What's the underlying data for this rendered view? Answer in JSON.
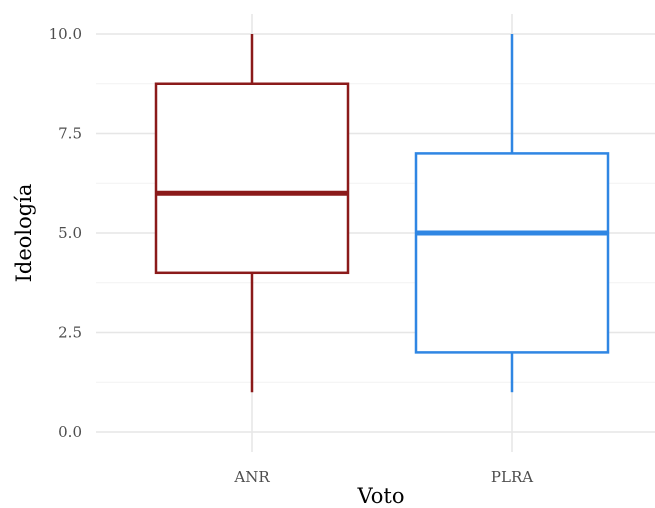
{
  "chart_data": {
    "type": "box",
    "xlabel": "Voto",
    "ylabel": "Ideología",
    "ylim": [
      0,
      10
    ],
    "yticks": [
      0,
      2.5,
      5,
      7.5,
      10
    ],
    "ytick_labels": [
      "0.0",
      "2.5",
      "5.0",
      "7.5",
      "10.0"
    ],
    "categories": [
      "ANR",
      "PLRA"
    ],
    "boxes": [
      {
        "category": "ANR",
        "min": 1,
        "q1": 4,
        "median": 6,
        "q3": 8.75,
        "max": 10,
        "color": "#8B1A1A"
      },
      {
        "category": "PLRA",
        "min": 1,
        "q1": 2,
        "median": 5,
        "q3": 7,
        "max": 10,
        "color": "#2F86E3"
      }
    ],
    "grid": true,
    "legend": "none"
  }
}
